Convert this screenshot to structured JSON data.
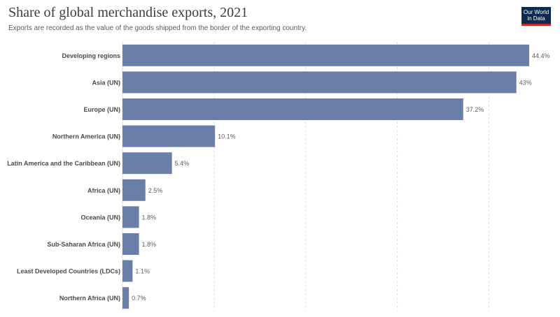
{
  "header": {
    "title": "Share of global merchandise exports, 2021",
    "subtitle": "Exports are recorded as the value of the goods shipped from the border of the exporting country."
  },
  "logo": {
    "line1": "Our World",
    "line2": "in Data"
  },
  "colors": {
    "bar": "#6a7fa8",
    "grid": "#dddddd",
    "logo_bg": "#0b2a4f",
    "logo_accent": "#ce261e"
  },
  "chart_data": {
    "type": "bar",
    "orientation": "horizontal",
    "categories": [
      "Developing regions",
      "Asia (UN)",
      "Europe (UN)",
      "Northern America (UN)",
      "Latin America and the Caribbean (UN)",
      "Africa (UN)",
      "Oceania (UN)",
      "Sub-Saharan Africa (UN)",
      "Least Developed Countries (LDCs)",
      "Northern Africa (UN)"
    ],
    "values": [
      44.4,
      43,
      37.2,
      10.1,
      5.4,
      2.5,
      1.8,
      1.8,
      1.1,
      0.7
    ],
    "value_labels": [
      "44.4%",
      "43%",
      "37.2%",
      "10.1%",
      "5.4%",
      "2.5%",
      "1.8%",
      "1.8%",
      "1.1%",
      "0.7%"
    ],
    "unit": "%",
    "xlim": [
      0,
      44.4
    ],
    "gridlines": [
      0,
      10,
      20,
      30,
      40
    ],
    "grid": true
  }
}
